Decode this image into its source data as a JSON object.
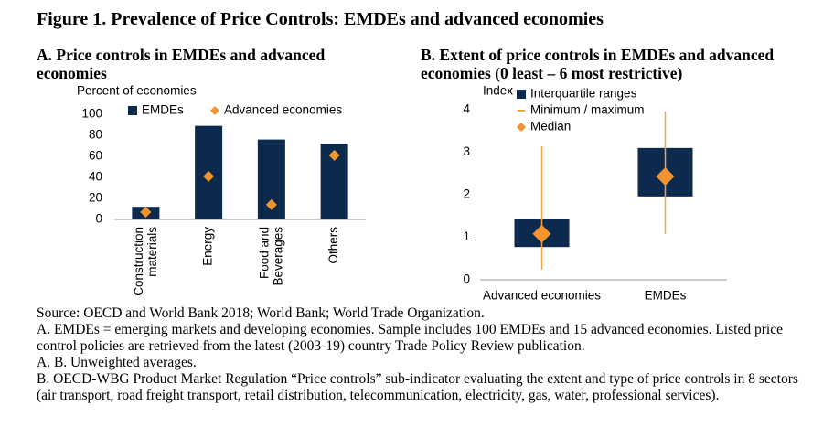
{
  "title": "Figure 1. Prevalence of Price Controls: EMDEs and advanced economies",
  "notes": [
    "Source: OECD and World Bank 2018; World Bank; World Trade Organization.",
    "A. EMDEs = emerging markets and developing economies. Sample includes 100 EMDEs and 15 advanced economies. Listed price control policies are retrieved from the latest (2003-19) country Trade Policy Review publication.",
    "A. B. Unweighted averages.",
    "B. OECD-WBG Product Market Regulation “Price controls” sub-indicator evaluating the extent and type of price controls in 8 sectors (air transport, road freight transport, retail distribution, telecommunication, electricity, gas, water, professional services)."
  ],
  "chart_data": [
    {
      "type": "bar",
      "title": "A. Price controls in EMDEs and advanced economies",
      "ylabel": "Percent of economies",
      "categories": [
        "Construction materials",
        "Energy",
        "Food and Beverages",
        "Others"
      ],
      "series": [
        {
          "name": "EMDEs",
          "color": "#0c2a4e",
          "marker": "bar",
          "values": [
            12,
            89,
            76,
            72
          ]
        },
        {
          "name": "Advanced economies",
          "color": "#f2952f",
          "marker": "diamond",
          "values": [
            7,
            41,
            14,
            61
          ]
        }
      ],
      "ylim": [
        0,
        100
      ],
      "yticks": [
        0,
        20,
        40,
        60,
        80,
        100
      ],
      "grid": false
    },
    {
      "type": "box",
      "title": "B. Extent of price controls in EMDEs and advanced economies (0 least – 6 most restrictive)",
      "ylabel": "Index",
      "categories": [
        "Advanced economies",
        "EMDEs"
      ],
      "q1": [
        0.77,
        1.96
      ],
      "q3": [
        1.42,
        3.1
      ],
      "min": [
        0.24,
        1.08
      ],
      "max": [
        3.14,
        3.96
      ],
      "median": [
        1.08,
        2.43
      ],
      "legend": [
        "Interquartile ranges",
        "Minimum / maximum",
        "Median"
      ],
      "box_color": "#0c2a4e",
      "whisker_color": "#f2a440",
      "median_color": "#f2952f",
      "ylim": [
        0,
        4
      ],
      "yticks": [
        0,
        1,
        2,
        3,
        4
      ],
      "grid": false
    }
  ]
}
